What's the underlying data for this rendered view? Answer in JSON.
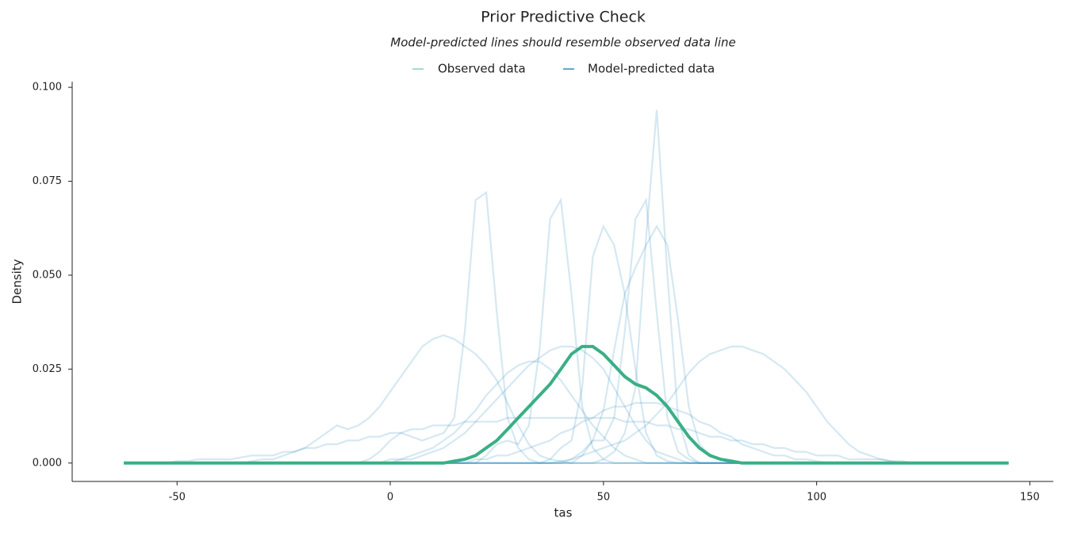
{
  "chart_data": {
    "type": "line",
    "title": "Prior Predictive Check",
    "subtitle": "Model-predicted lines should resemble observed data line",
    "x_label": "tas",
    "y_label": "Density",
    "xlim": [
      -74.6,
      155.5
    ],
    "ylim": [
      -0.0049,
      0.1015
    ],
    "xticks": [
      -50,
      0,
      50,
      100,
      150
    ],
    "yticks": [
      {
        "value": 0,
        "label": "0.000"
      },
      {
        "value": 0.025,
        "label": "0.025"
      },
      {
        "value": 0.05,
        "label": "0.050"
      },
      {
        "value": 0.075,
        "label": "0.075"
      },
      {
        "value": 0.1,
        "label": "0.100"
      }
    ],
    "x": [
      -62.5,
      -60,
      -57.5,
      -55,
      -52.5,
      -50,
      -47.5,
      -45,
      -42.5,
      -40,
      -37.5,
      -35,
      -32.5,
      -30,
      -27.5,
      -25,
      -22.5,
      -20,
      -17.5,
      -15,
      -12.5,
      -10,
      -7.5,
      -5,
      -2.5,
      0,
      2.5,
      5,
      7.5,
      10,
      12.5,
      15,
      17.5,
      20,
      22.5,
      25,
      27.5,
      30,
      32.5,
      35,
      37.5,
      40,
      42.5,
      45,
      47.5,
      50,
      52.5,
      55,
      57.5,
      60,
      62.5,
      65,
      67.5,
      70,
      72.5,
      75,
      77.5,
      80,
      82.5,
      85,
      87.5,
      90,
      92.5,
      95,
      97.5,
      100,
      102.5,
      105,
      107.5,
      110,
      112.5,
      115,
      117.5,
      120,
      122.5,
      125,
      127.5,
      130,
      132.5,
      135,
      137.5,
      140,
      142.5,
      145
    ],
    "series": [
      {
        "name": "Observed data",
        "color": "#3aaf85",
        "values": [
          0,
          0,
          0,
          0,
          0,
          0,
          0,
          0,
          0,
          0,
          0,
          0,
          0,
          0,
          0,
          0,
          0,
          0,
          0,
          0,
          0,
          0,
          0,
          0,
          0,
          0,
          0,
          0,
          0,
          0,
          0,
          0.0005,
          0.001,
          0.002,
          0.004,
          0.006,
          0.009,
          0.012,
          0.015,
          0.018,
          0.021,
          0.025,
          0.029,
          0.031,
          0.031,
          0.029,
          0.026,
          0.023,
          0.021,
          0.02,
          0.018,
          0.015,
          0.011,
          0.007,
          0.004,
          0.002,
          0.001,
          0.0005,
          0,
          0,
          0,
          0,
          0,
          0,
          0,
          0,
          0,
          0,
          0,
          0,
          0,
          0,
          0,
          0,
          0,
          0,
          0,
          0,
          0,
          0,
          0,
          0,
          0,
          0
        ]
      },
      {
        "name": "Model-predicted data",
        "color": "#2b8cbe",
        "lines": [
          [
            0,
            0,
            0,
            0,
            0,
            0,
            0,
            0,
            0,
            0,
            0,
            0,
            0.0005,
            0.001,
            0.001,
            0.002,
            0.003,
            0.004,
            0.006,
            0.008,
            0.01,
            0.009,
            0.01,
            0.012,
            0.015,
            0.019,
            0.023,
            0.027,
            0.031,
            0.033,
            0.034,
            0.033,
            0.031,
            0.029,
            0.026,
            0.022,
            0.016,
            0.01,
            0.005,
            0.002,
            0.001,
            0.0005,
            0,
            0,
            0,
            0,
            0,
            0,
            0,
            0,
            0,
            0,
            0,
            0,
            0,
            0,
            0,
            0,
            0,
            0,
            0,
            0,
            0,
            0,
            0,
            0,
            0,
            0,
            0,
            0,
            0,
            0,
            0,
            0,
            0,
            0,
            0,
            0,
            0,
            0,
            0,
            0,
            0,
            0
          ],
          [
            0,
            0,
            0,
            0,
            0,
            0,
            0,
            0,
            0,
            0,
            0,
            0,
            0,
            0,
            0,
            0,
            0,
            0,
            0,
            0,
            0,
            0,
            0,
            0.001,
            0.003,
            0.006,
            0.008,
            0.007,
            0.006,
            0.007,
            0.008,
            0.012,
            0.035,
            0.07,
            0.072,
            0.04,
            0.012,
            0.004,
            0.001,
            0,
            0,
            0,
            0,
            0,
            0,
            0,
            0,
            0,
            0,
            0,
            0,
            0,
            0,
            0,
            0,
            0,
            0,
            0,
            0,
            0,
            0,
            0,
            0,
            0,
            0,
            0,
            0,
            0,
            0,
            0,
            0,
            0,
            0,
            0,
            0,
            0,
            0,
            0,
            0,
            0,
            0,
            0,
            0,
            0
          ],
          [
            0,
            0,
            0,
            0,
            0,
            0,
            0,
            0,
            0,
            0,
            0,
            0,
            0,
            0,
            0,
            0,
            0,
            0,
            0,
            0,
            0,
            0,
            0,
            0,
            0,
            0,
            0,
            0,
            0,
            0,
            0,
            0,
            0,
            0,
            0.002,
            0.005,
            0.006,
            0.005,
            0.01,
            0.03,
            0.065,
            0.07,
            0.045,
            0.015,
            0.004,
            0.001,
            0,
            0,
            0,
            0,
            0,
            0,
            0,
            0,
            0,
            0,
            0,
            0,
            0,
            0,
            0,
            0,
            0,
            0,
            0,
            0,
            0,
            0,
            0,
            0,
            0,
            0,
            0,
            0,
            0,
            0,
            0,
            0,
            0,
            0,
            0,
            0,
            0,
            0
          ],
          [
            0,
            0,
            0,
            0,
            0,
            0,
            0,
            0,
            0,
            0,
            0,
            0,
            0,
            0,
            0,
            0,
            0,
            0,
            0,
            0,
            0,
            0,
            0,
            0,
            0,
            0,
            0,
            0,
            0,
            0,
            0,
            0,
            0,
            0,
            0,
            0,
            0,
            0,
            0,
            0,
            0.001,
            0.004,
            0.006,
            0.02,
            0.055,
            0.063,
            0.058,
            0.045,
            0.025,
            0.008,
            0.002,
            0.0005,
            0,
            0,
            0,
            0,
            0,
            0,
            0,
            0,
            0,
            0,
            0,
            0,
            0,
            0,
            0,
            0,
            0,
            0,
            0,
            0,
            0,
            0,
            0,
            0,
            0,
            0,
            0,
            0,
            0,
            0,
            0,
            0
          ],
          [
            0,
            0,
            0,
            0,
            0,
            0,
            0,
            0,
            0,
            0,
            0,
            0,
            0,
            0,
            0,
            0,
            0,
            0,
            0,
            0,
            0,
            0,
            0,
            0,
            0,
            0,
            0,
            0,
            0,
            0,
            0,
            0,
            0,
            0,
            0,
            0,
            0,
            0,
            0,
            0,
            0,
            0,
            0.001,
            0.003,
            0.006,
            0.006,
            0.012,
            0.035,
            0.065,
            0.07,
            0.04,
            0.012,
            0.003,
            0.001,
            0,
            0,
            0,
            0,
            0,
            0,
            0,
            0,
            0,
            0,
            0,
            0,
            0,
            0,
            0,
            0,
            0,
            0,
            0,
            0,
            0,
            0,
            0,
            0,
            0,
            0,
            0,
            0,
            0,
            0
          ],
          [
            0,
            0,
            0,
            0,
            0,
            0,
            0,
            0,
            0,
            0,
            0,
            0,
            0,
            0,
            0,
            0,
            0,
            0,
            0,
            0,
            0,
            0,
            0,
            0,
            0,
            0,
            0,
            0,
            0,
            0,
            0,
            0,
            0,
            0,
            0,
            0,
            0,
            0,
            0,
            0,
            0,
            0,
            0,
            0,
            0,
            0.001,
            0.003,
            0.008,
            0.02,
            0.06,
            0.094,
            0.05,
            0.012,
            0.002,
            0,
            0,
            0,
            0,
            0,
            0,
            0,
            0,
            0,
            0,
            0,
            0,
            0,
            0,
            0,
            0,
            0,
            0,
            0,
            0,
            0,
            0,
            0,
            0,
            0,
            0,
            0,
            0,
            0,
            0
          ],
          [
            0,
            0,
            0,
            0,
            0,
            0,
            0,
            0,
            0,
            0,
            0,
            0,
            0,
            0,
            0,
            0,
            0,
            0,
            0,
            0,
            0,
            0,
            0,
            0,
            0,
            0,
            0,
            0,
            0,
            0,
            0,
            0,
            0,
            0,
            0,
            0,
            0,
            0,
            0,
            0,
            0,
            0,
            0,
            0.002,
            0.006,
            0.014,
            0.03,
            0.045,
            0.052,
            0.058,
            0.063,
            0.058,
            0.038,
            0.015,
            0.005,
            0.002,
            0.001,
            0,
            0,
            0,
            0,
            0,
            0,
            0,
            0,
            0,
            0,
            0,
            0,
            0,
            0,
            0,
            0,
            0,
            0,
            0,
            0,
            0,
            0,
            0,
            0,
            0,
            0,
            0
          ],
          [
            0,
            0,
            0,
            0,
            0,
            0,
            0,
            0,
            0,
            0,
            0,
            0,
            0,
            0,
            0,
            0,
            0,
            0,
            0,
            0,
            0,
            0,
            0,
            0,
            0,
            0,
            0,
            0,
            0,
            0,
            0,
            0,
            0,
            0,
            0,
            0,
            0,
            0,
            0,
            0,
            0,
            0.0005,
            0.001,
            0.002,
            0.003,
            0.004,
            0.005,
            0.006,
            0.008,
            0.01,
            0.013,
            0.016,
            0.02,
            0.024,
            0.027,
            0.029,
            0.03,
            0.031,
            0.031,
            0.03,
            0.029,
            0.027,
            0.025,
            0.022,
            0.019,
            0.015,
            0.011,
            0.008,
            0.005,
            0.003,
            0.002,
            0.001,
            0.0005,
            0,
            0,
            0,
            0,
            0,
            0,
            0,
            0,
            0,
            0,
            0
          ],
          [
            0,
            0,
            0,
            0,
            0,
            0.0005,
            0.0005,
            0.001,
            0.001,
            0.001,
            0.001,
            0.0015,
            0.002,
            0.002,
            0.002,
            0.003,
            0.003,
            0.004,
            0.004,
            0.005,
            0.005,
            0.006,
            0.006,
            0.007,
            0.007,
            0.008,
            0.008,
            0.009,
            0.009,
            0.01,
            0.01,
            0.01,
            0.011,
            0.011,
            0.011,
            0.011,
            0.012,
            0.012,
            0.012,
            0.012,
            0.012,
            0.012,
            0.012,
            0.012,
            0.012,
            0.012,
            0.012,
            0.011,
            0.011,
            0.011,
            0.01,
            0.01,
            0.009,
            0.009,
            0.008,
            0.007,
            0.007,
            0.006,
            0.006,
            0.005,
            0.005,
            0.004,
            0.004,
            0.003,
            0.003,
            0.002,
            0.002,
            0.002,
            0.001,
            0.001,
            0.001,
            0.001,
            0.0005,
            0.0005,
            0,
            0,
            0,
            0,
            0,
            0,
            0,
            0,
            0,
            0
          ],
          [
            0,
            0,
            0,
            0,
            0,
            0,
            0,
            0,
            0,
            0,
            0,
            0,
            0,
            0,
            0,
            0,
            0,
            0,
            0,
            0,
            0,
            0,
            0,
            0,
            0,
            0.001,
            0.001,
            0.002,
            0.003,
            0.004,
            0.006,
            0.008,
            0.011,
            0.014,
            0.018,
            0.021,
            0.024,
            0.026,
            0.027,
            0.027,
            0.025,
            0.022,
            0.018,
            0.014,
            0.01,
            0.007,
            0.004,
            0.002,
            0.001,
            0,
            0,
            0,
            0,
            0,
            0,
            0,
            0,
            0,
            0,
            0,
            0,
            0,
            0,
            0,
            0,
            0,
            0,
            0,
            0,
            0,
            0,
            0,
            0,
            0,
            0,
            0,
            0,
            0,
            0,
            0,
            0,
            0,
            0,
            0
          ],
          [
            0,
            0,
            0,
            0,
            0,
            0,
            0,
            0,
            0,
            0,
            0,
            0,
            0,
            0,
            0,
            0,
            0,
            0,
            0,
            0,
            0,
            0,
            0,
            0,
            0,
            0,
            0,
            0,
            0,
            0,
            0,
            0,
            0,
            0.001,
            0.001,
            0.002,
            0.002,
            0.003,
            0.004,
            0.005,
            0.006,
            0.008,
            0.009,
            0.011,
            0.012,
            0.014,
            0.015,
            0.015,
            0.016,
            0.016,
            0.016,
            0.015,
            0.014,
            0.013,
            0.011,
            0.01,
            0.008,
            0.007,
            0.005,
            0.004,
            0.003,
            0.002,
            0.002,
            0.001,
            0.001,
            0.0005,
            0,
            0,
            0,
            0,
            0,
            0,
            0,
            0,
            0,
            0,
            0,
            0,
            0,
            0,
            0,
            0,
            0,
            0
          ],
          [
            0,
            0,
            0,
            0,
            0,
            0,
            0,
            0,
            0,
            0,
            0,
            0,
            0,
            0,
            0,
            0,
            0,
            0,
            0,
            0,
            0,
            0,
            0,
            0,
            0,
            0,
            0.001,
            0.001,
            0.002,
            0.003,
            0.004,
            0.006,
            0.008,
            0.011,
            0.014,
            0.017,
            0.02,
            0.023,
            0.026,
            0.028,
            0.03,
            0.031,
            0.031,
            0.03,
            0.028,
            0.025,
            0.02,
            0.015,
            0.01,
            0.006,
            0.003,
            0.002,
            0.001,
            0,
            0,
            0,
            0,
            0,
            0,
            0,
            0,
            0,
            0,
            0,
            0,
            0,
            0,
            0,
            0,
            0,
            0,
            0,
            0,
            0,
            0,
            0,
            0,
            0,
            0,
            0,
            0,
            0,
            0,
            0
          ]
        ]
      }
    ]
  }
}
